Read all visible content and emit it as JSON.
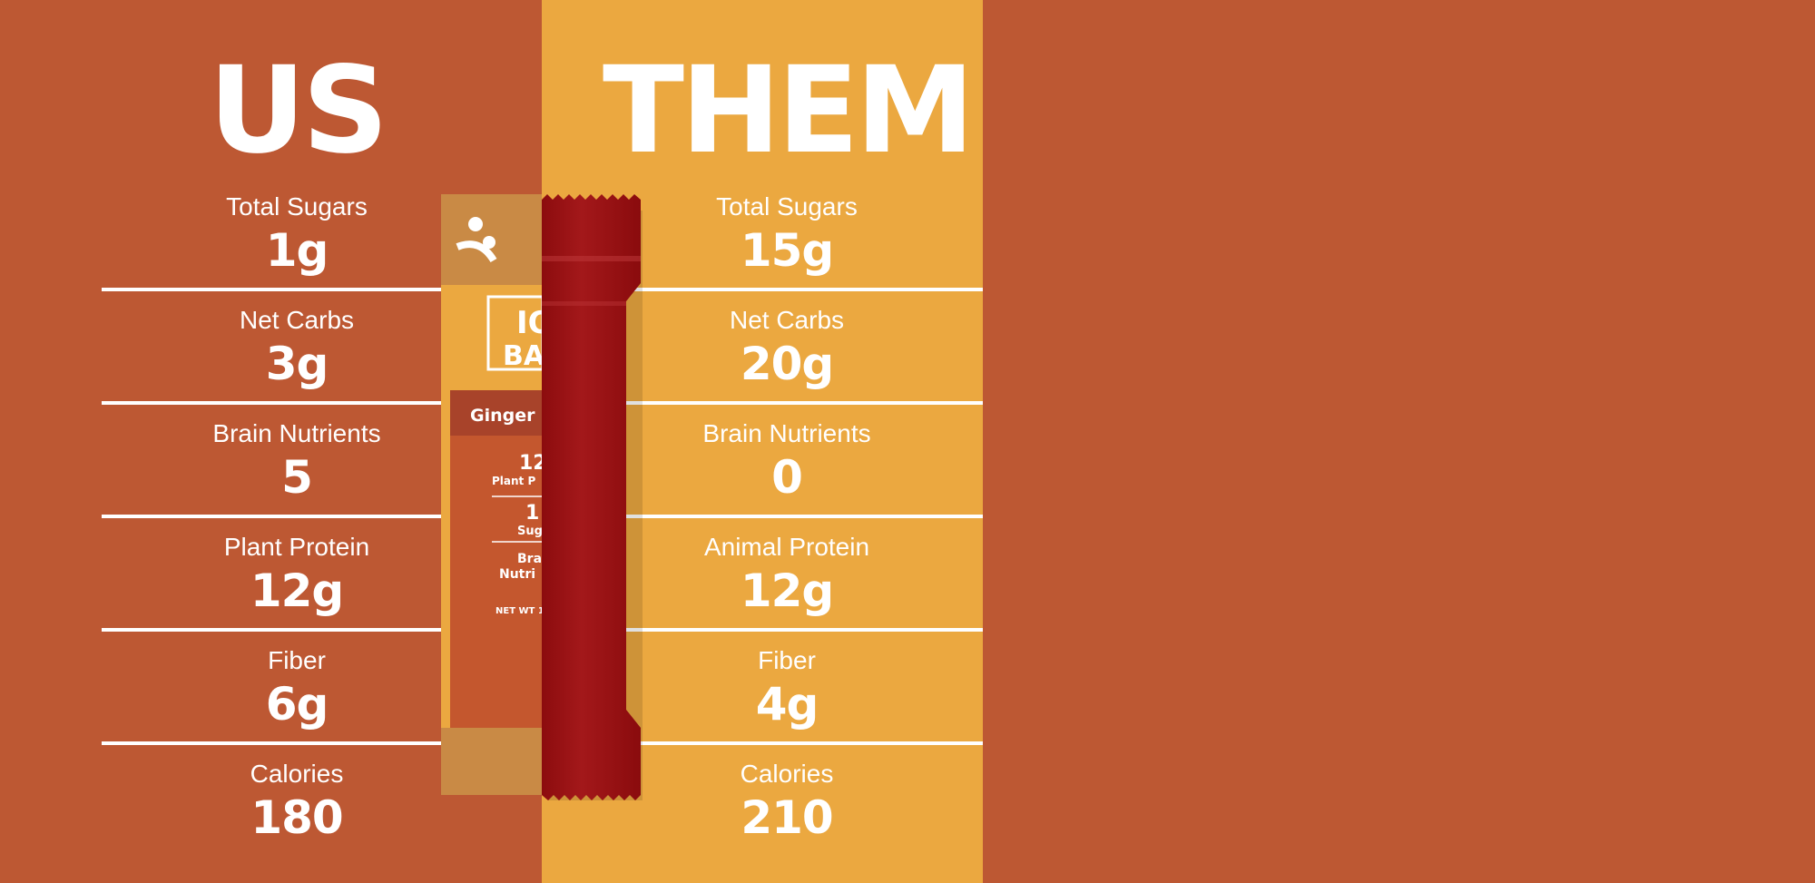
{
  "us": {
    "heading": "US",
    "rows": [
      {
        "label": "Total Sugars",
        "value": "1g"
      },
      {
        "label": "Net Carbs",
        "value": "3g"
      },
      {
        "label": "Brain Nutrients",
        "value": "5"
      },
      {
        "label": "Plant Protein",
        "value": "12g"
      },
      {
        "label": "Fiber",
        "value": "6g"
      },
      {
        "label": "Calories",
        "value": "180"
      }
    ]
  },
  "them": {
    "heading": "THEM",
    "rows": [
      {
        "label": "Total Sugars",
        "value": "15g"
      },
      {
        "label": "Net Carbs",
        "value": "20g"
      },
      {
        "label": "Brain Nutrients",
        "value": "0"
      },
      {
        "label": "Animal Protein",
        "value": "12g"
      },
      {
        "label": "Fiber",
        "value": "4g"
      },
      {
        "label": "Calories",
        "value": "210"
      }
    ]
  },
  "package": {
    "logo": "IQ BAR",
    "flavor": "Ginger",
    "stat1_value": "12",
    "stat1_label": "Plant P",
    "stat2_value": "1",
    "stat2_label": "Sug",
    "stat3_line1": "Bra",
    "stat3_line2": "Nutri",
    "net_wt": "NET WT 1.6"
  },
  "colors": {
    "us_bg": "#bd5833",
    "them_bg": "#eba840",
    "competitor_wrapper": "#9a1214"
  }
}
